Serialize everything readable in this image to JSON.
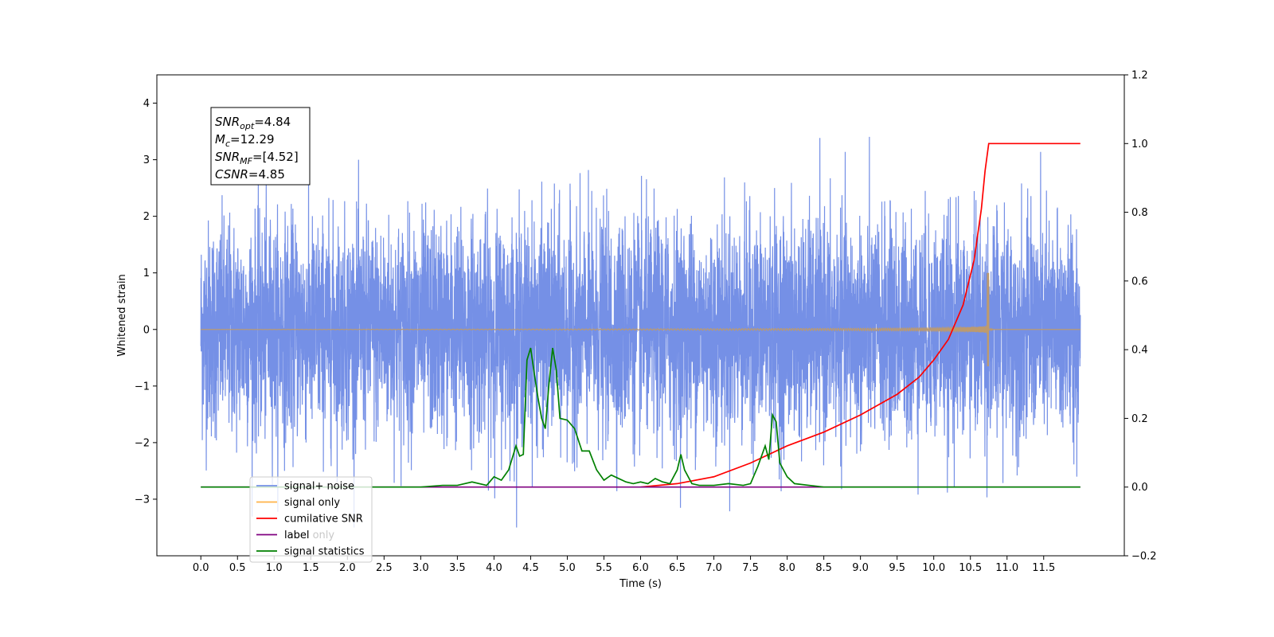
{
  "chart_data": {
    "type": "line",
    "title": "",
    "xlabel": "Time (s)",
    "ylabel": "Whitened strain",
    "xlim": [
      -0.6,
      12.6
    ],
    "ylim": [
      -4.0,
      4.5
    ],
    "y2lim": [
      -0.2,
      1.2
    ],
    "x_ticks": [
      0.0,
      0.5,
      1.0,
      1.5,
      2.0,
      2.5,
      3.0,
      3.5,
      4.0,
      4.5,
      5.0,
      5.5,
      6.0,
      6.5,
      7.0,
      7.5,
      8.0,
      8.5,
      9.0,
      9.5,
      10.0,
      10.5,
      11.0,
      11.5
    ],
    "x_tick_labels": [
      "0.0",
      "0.5",
      "1.0",
      "1.5",
      "2.0",
      "2.5",
      "3.0",
      "3.5",
      "4.0",
      "4.5",
      "5.0",
      "5.5",
      "6.0",
      "6.5",
      "7.0",
      "7.5",
      "8.0",
      "8.5",
      "9.0",
      "9.5",
      "10.0",
      "10.5",
      "11.0",
      "11.5"
    ],
    "y_ticks": [
      -3,
      -2,
      -1,
      0,
      1,
      2,
      3,
      4
    ],
    "y_tick_labels": [
      "−3",
      "−2",
      "−1",
      "0",
      "1",
      "2",
      "3",
      "4"
    ],
    "y2_ticks": [
      -0.2,
      0.0,
      0.2,
      0.4,
      0.6,
      0.8,
      1.0,
      1.2
    ],
    "y2_tick_labels": [
      "−0.2",
      "0.0",
      "0.2",
      "0.4",
      "0.6",
      "0.8",
      "1.0",
      "1.2"
    ],
    "grid": false,
    "legend_position": "bottom-left",
    "stats_box": [
      {
        "base": "SNR",
        "sub": "opt",
        "value": "=4.84"
      },
      {
        "base": "M",
        "sub": "c",
        "value": "=12.29"
      },
      {
        "base": "SNR",
        "sub": "MF",
        "value": "=[4.52]"
      },
      {
        "base": "CSNR",
        "sub": "",
        "value": "=4.85"
      }
    ],
    "series": [
      {
        "name": "signal+ noise",
        "axis": "left",
        "color": "#7590e6",
        "kind": "noise",
        "t_range": [
          0.0,
          12.0
        ],
        "sigma": 1.0,
        "envelope_min": -3.5,
        "envelope_max": 4.1
      },
      {
        "name": "signal only",
        "axis": "left",
        "color": "#ffb347",
        "overlap_color": "#bc9a6f",
        "kind": "chirp",
        "t_range": [
          0.0,
          12.0
        ],
        "merger_time": 10.75,
        "peak_amplitude": 1.0,
        "min_amplitude": -0.65
      },
      {
        "name": "cumilative SNR",
        "axis": "right",
        "color": "#ff0000",
        "kind": "curve",
        "points": [
          [
            6.0,
            0.0
          ],
          [
            6.5,
            0.01
          ],
          [
            7.0,
            0.03
          ],
          [
            7.5,
            0.07
          ],
          [
            8.0,
            0.12
          ],
          [
            8.5,
            0.16
          ],
          [
            9.0,
            0.21
          ],
          [
            9.5,
            0.27
          ],
          [
            9.8,
            0.32
          ],
          [
            10.0,
            0.37
          ],
          [
            10.2,
            0.43
          ],
          [
            10.4,
            0.53
          ],
          [
            10.55,
            0.66
          ],
          [
            10.65,
            0.81
          ],
          [
            10.7,
            0.92
          ],
          [
            10.75,
            1.0
          ],
          [
            12.0,
            1.0
          ]
        ]
      },
      {
        "name": "label",
        "axis": "right",
        "color": "#800080",
        "kind": "curve",
        "points": [
          [
            0.0,
            0.0
          ],
          [
            12.0,
            0.0
          ]
        ]
      },
      {
        "name": "label only",
        "axis": "right",
        "color": "#800080",
        "kind": "hidden",
        "points": []
      },
      {
        "name": "signal statistics",
        "axis": "right",
        "color": "#008000",
        "kind": "curve",
        "points": [
          [
            0.0,
            0.0
          ],
          [
            3.0,
            0.0
          ],
          [
            3.3,
            0.005
          ],
          [
            3.5,
            0.005
          ],
          [
            3.7,
            0.015
          ],
          [
            3.9,
            0.005
          ],
          [
            4.0,
            0.03
          ],
          [
            4.1,
            0.02
          ],
          [
            4.2,
            0.05
          ],
          [
            4.3,
            0.12
          ],
          [
            4.35,
            0.09
          ],
          [
            4.4,
            0.095
          ],
          [
            4.45,
            0.37
          ],
          [
            4.5,
            0.405
          ],
          [
            4.55,
            0.33
          ],
          [
            4.6,
            0.26
          ],
          [
            4.65,
            0.2
          ],
          [
            4.7,
            0.17
          ],
          [
            4.75,
            0.3
          ],
          [
            4.8,
            0.405
          ],
          [
            4.85,
            0.34
          ],
          [
            4.9,
            0.2
          ],
          [
            5.0,
            0.195
          ],
          [
            5.1,
            0.17
          ],
          [
            5.2,
            0.105
          ],
          [
            5.3,
            0.105
          ],
          [
            5.4,
            0.05
          ],
          [
            5.5,
            0.02
          ],
          [
            5.6,
            0.035
          ],
          [
            5.7,
            0.025
          ],
          [
            5.8,
            0.015
          ],
          [
            5.9,
            0.01
          ],
          [
            6.0,
            0.015
          ],
          [
            6.1,
            0.01
          ],
          [
            6.2,
            0.025
          ],
          [
            6.3,
            0.015
          ],
          [
            6.4,
            0.01
          ],
          [
            6.5,
            0.05
          ],
          [
            6.55,
            0.095
          ],
          [
            6.6,
            0.05
          ],
          [
            6.7,
            0.01
          ],
          [
            6.8,
            0.005
          ],
          [
            7.0,
            0.005
          ],
          [
            7.2,
            0.01
          ],
          [
            7.4,
            0.005
          ],
          [
            7.5,
            0.01
          ],
          [
            7.6,
            0.06
          ],
          [
            7.7,
            0.12
          ],
          [
            7.75,
            0.08
          ],
          [
            7.8,
            0.21
          ],
          [
            7.85,
            0.19
          ],
          [
            7.9,
            0.07
          ],
          [
            8.0,
            0.03
          ],
          [
            8.1,
            0.01
          ],
          [
            8.3,
            0.005
          ],
          [
            8.5,
            0.0
          ],
          [
            12.0,
            0.0
          ]
        ]
      }
    ]
  }
}
